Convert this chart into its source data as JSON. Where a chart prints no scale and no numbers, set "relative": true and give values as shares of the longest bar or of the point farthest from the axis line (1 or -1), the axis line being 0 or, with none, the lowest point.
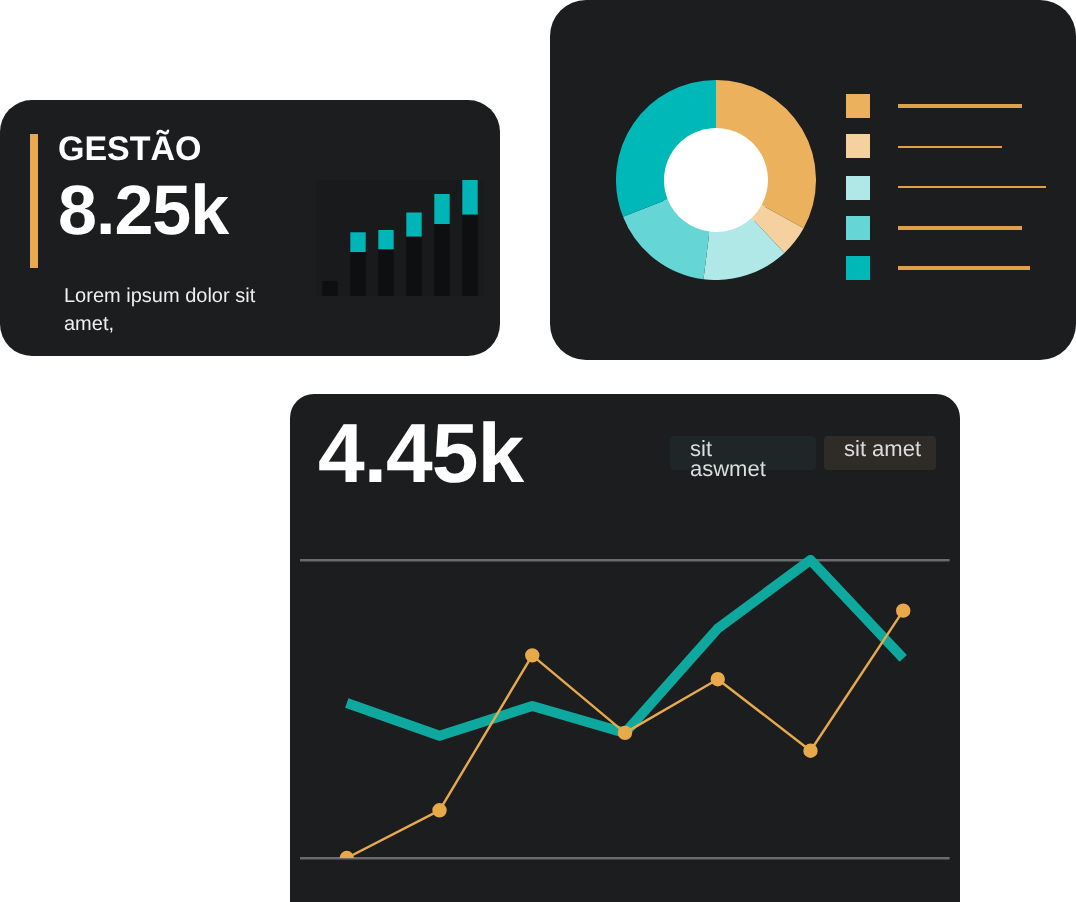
{
  "chart_data": [
    {
      "type": "bar",
      "stacked": true,
      "relative": true,
      "title": "GESTÃO",
      "subtitle": "8.25k",
      "annotations": [
        "Lorem ipsum dolor sit amet,"
      ],
      "categories": [
        null,
        null,
        null,
        null,
        null,
        null
      ],
      "series": [
        {
          "color": "#0e0f10",
          "values": [
            0.13,
            0.38,
            0.4,
            0.51,
            0.62,
            0.7
          ]
        },
        {
          "color": "#00b5b5",
          "values": [
            0,
            0.17,
            0.17,
            0.21,
            0.26,
            0.3
          ]
        }
      ]
    },
    {
      "type": "donut",
      "categories": [
        null,
        null,
        null,
        null,
        null
      ],
      "values": [
        33,
        5,
        14,
        17,
        31
      ],
      "colors": [
        "#ecb15d",
        "#f5d19f",
        "#b0e8e8",
        "#66d5d5",
        "#00b8b8"
      ]
    },
    {
      "type": "line",
      "relative": true,
      "title": "4.45k",
      "annotations": [
        "sit aswmet",
        "sit amet"
      ],
      "categories": [
        null,
        null,
        null,
        null,
        null,
        null,
        null
      ],
      "grid": "y",
      "series": [
        {
          "color": "#0fa89e",
          "marker": "none",
          "values": [
            0.52,
            0.41,
            0.51,
            0.42,
            0.77,
            1.0,
            0.67
          ]
        },
        {
          "color": "#e8a94a",
          "marker": "circle",
          "values": [
            0,
            0.16,
            0.68,
            0.42,
            0.6,
            0.36,
            0.83
          ]
        }
      ]
    }
  ]
}
